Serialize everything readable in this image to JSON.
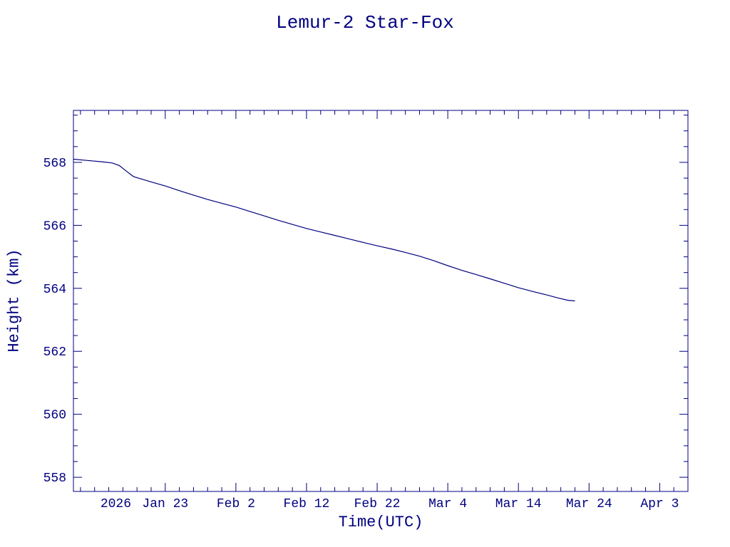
{
  "page": {
    "background": "#ffffff",
    "accent_color": "#000080"
  },
  "chart_data": {
    "type": "line",
    "title": "Lemur-2 Star-Fox",
    "xlabel": "Time(UTC)",
    "ylabel": "Height (km)",
    "line_color": "#000080",
    "legend": "none",
    "grid": false,
    "x_axis": {
      "unit": "days (0 = left edge of plot, approx 2026 Jan 10)",
      "range": [
        0,
        87
      ],
      "major_ticks": [
        {
          "day": 13,
          "label": "Jan 23"
        },
        {
          "day": 23,
          "label": "Feb 2"
        },
        {
          "day": 33,
          "label": "Feb 12"
        },
        {
          "day": 43,
          "label": "Feb 22"
        },
        {
          "day": 53,
          "label": "Mar 4"
        },
        {
          "day": 63,
          "label": "Mar 14"
        },
        {
          "day": 73,
          "label": "Mar 24"
        },
        {
          "day": 83,
          "label": "Apr 3"
        }
      ],
      "year_label": {
        "day": 6,
        "label": "2026"
      },
      "minor_tick_step": 2
    },
    "y_axis": {
      "range": [
        557.55,
        569.65
      ],
      "major_ticks": [
        558,
        560,
        562,
        564,
        566,
        568
      ],
      "minor_tick_step": 0.5
    },
    "series": [
      {
        "name": "height_km",
        "points": [
          [
            0,
            568.1
          ],
          [
            2,
            568.06
          ],
          [
            4,
            568.02
          ],
          [
            5.5,
            567.98
          ],
          [
            6.5,
            567.9
          ],
          [
            7.5,
            567.72
          ],
          [
            8.5,
            567.55
          ],
          [
            9.5,
            567.48
          ],
          [
            11,
            567.38
          ],
          [
            13,
            567.25
          ],
          [
            15,
            567.1
          ],
          [
            17,
            566.96
          ],
          [
            19,
            566.82
          ],
          [
            21,
            566.7
          ],
          [
            23,
            566.58
          ],
          [
            25,
            566.44
          ],
          [
            27,
            566.3
          ],
          [
            29,
            566.16
          ],
          [
            31,
            566.03
          ],
          [
            33,
            565.9
          ],
          [
            35,
            565.79
          ],
          [
            37,
            565.68
          ],
          [
            39,
            565.57
          ],
          [
            41,
            565.46
          ],
          [
            43,
            565.35
          ],
          [
            45,
            565.25
          ],
          [
            47,
            565.14
          ],
          [
            49,
            565.02
          ],
          [
            51,
            564.88
          ],
          [
            53,
            564.72
          ],
          [
            55,
            564.57
          ],
          [
            57,
            564.44
          ],
          [
            59,
            564.3
          ],
          [
            61,
            564.16
          ],
          [
            63,
            564.02
          ],
          [
            65,
            563.9
          ],
          [
            67,
            563.79
          ],
          [
            68.5,
            563.7
          ],
          [
            70,
            563.62
          ],
          [
            71,
            563.6
          ]
        ]
      }
    ]
  }
}
